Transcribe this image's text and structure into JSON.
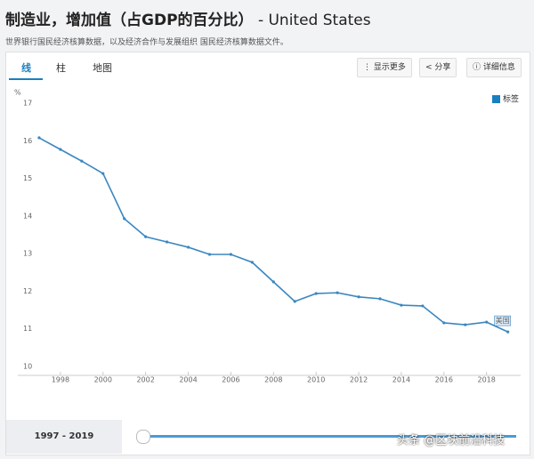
{
  "header": {
    "title": "制造业，增加值（占GDP的百分比）",
    "country": "- United States",
    "source": "世界银行国民经济核算数据，以及经济合作与发展组织 国民经济核算数据文件。"
  },
  "tabs": [
    "线",
    "柱",
    "地图"
  ],
  "buttons": [
    "显示更多",
    "分享",
    "详细信息"
  ],
  "checkbox_label": "标签",
  "range_label": "1997 - 2019",
  "watermark": "头条 @区块前沿科技",
  "chart_data": {
    "type": "line",
    "y_label": "%",
    "x": [
      1997,
      1998,
      1999,
      2000,
      2001,
      2002,
      2003,
      2004,
      2005,
      2006,
      2007,
      2008,
      2009,
      2010,
      2011,
      2012,
      2013,
      2014,
      2015,
      2016,
      2017,
      2018,
      2019
    ],
    "series": [
      {
        "name": "美国",
        "color": "#3a87c0",
        "values": [
          16.08,
          15.77,
          15.46,
          15.13,
          13.93,
          13.45,
          13.31,
          13.17,
          12.98,
          12.98,
          12.77,
          12.25,
          11.73,
          11.94,
          11.96,
          11.85,
          11.8,
          11.63,
          11.61,
          11.16,
          11.11,
          11.18,
          10.92
        ]
      }
    ],
    "xlim": [
      1996,
      2019.6
    ],
    "xticks": [
      1998,
      2000,
      2002,
      2004,
      2006,
      2008,
      2010,
      2012,
      2014,
      2016,
      2018
    ],
    "ylim": [
      10,
      17
    ],
    "yticks": [
      10,
      11,
      12,
      13,
      14,
      15,
      16,
      17
    ],
    "grid": false
  }
}
